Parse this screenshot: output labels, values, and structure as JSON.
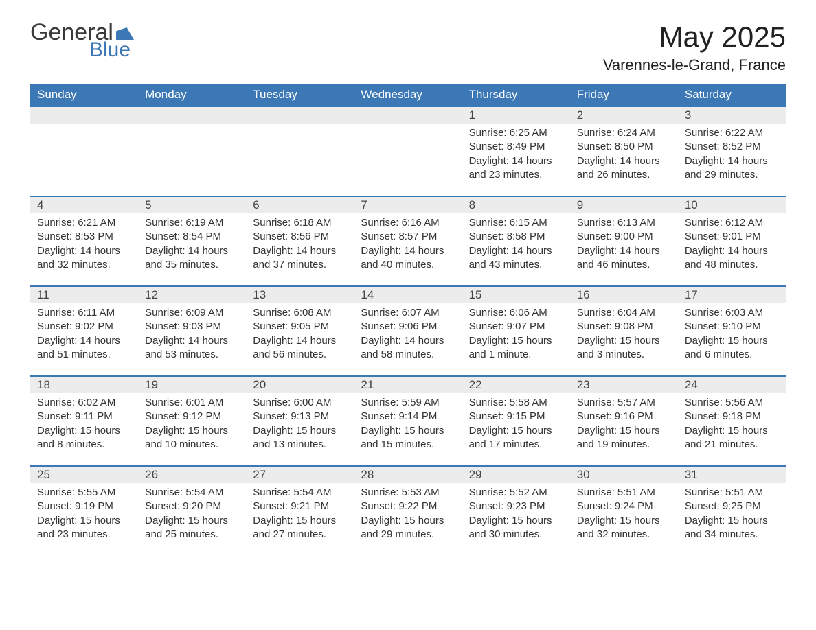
{
  "logo": {
    "word1": "General",
    "word2": "Blue"
  },
  "title": "May 2025",
  "location": "Varennes-le-Grand, France",
  "colors": {
    "header_bg": "#3b78b5",
    "header_text": "#ffffff",
    "daynum_bg": "#ececec",
    "border_top": "#3b78b5",
    "body_text": "#333333",
    "page_bg": "#ffffff"
  },
  "typography": {
    "title_fontsize": 42,
    "location_fontsize": 22,
    "header_fontsize": 17,
    "daynum_fontsize": 17,
    "cell_fontsize": 15,
    "font_family": "Arial"
  },
  "weekdays": [
    "Sunday",
    "Monday",
    "Tuesday",
    "Wednesday",
    "Thursday",
    "Friday",
    "Saturday"
  ],
  "weeks": [
    [
      null,
      null,
      null,
      null,
      {
        "n": "1",
        "sunrise": "6:25 AM",
        "sunset": "8:49 PM",
        "daylight": "14 hours and 23 minutes."
      },
      {
        "n": "2",
        "sunrise": "6:24 AM",
        "sunset": "8:50 PM",
        "daylight": "14 hours and 26 minutes."
      },
      {
        "n": "3",
        "sunrise": "6:22 AM",
        "sunset": "8:52 PM",
        "daylight": "14 hours and 29 minutes."
      }
    ],
    [
      {
        "n": "4",
        "sunrise": "6:21 AM",
        "sunset": "8:53 PM",
        "daylight": "14 hours and 32 minutes."
      },
      {
        "n": "5",
        "sunrise": "6:19 AM",
        "sunset": "8:54 PM",
        "daylight": "14 hours and 35 minutes."
      },
      {
        "n": "6",
        "sunrise": "6:18 AM",
        "sunset": "8:56 PM",
        "daylight": "14 hours and 37 minutes."
      },
      {
        "n": "7",
        "sunrise": "6:16 AM",
        "sunset": "8:57 PM",
        "daylight": "14 hours and 40 minutes."
      },
      {
        "n": "8",
        "sunrise": "6:15 AM",
        "sunset": "8:58 PM",
        "daylight": "14 hours and 43 minutes."
      },
      {
        "n": "9",
        "sunrise": "6:13 AM",
        "sunset": "9:00 PM",
        "daylight": "14 hours and 46 minutes."
      },
      {
        "n": "10",
        "sunrise": "6:12 AM",
        "sunset": "9:01 PM",
        "daylight": "14 hours and 48 minutes."
      }
    ],
    [
      {
        "n": "11",
        "sunrise": "6:11 AM",
        "sunset": "9:02 PM",
        "daylight": "14 hours and 51 minutes."
      },
      {
        "n": "12",
        "sunrise": "6:09 AM",
        "sunset": "9:03 PM",
        "daylight": "14 hours and 53 minutes."
      },
      {
        "n": "13",
        "sunrise": "6:08 AM",
        "sunset": "9:05 PM",
        "daylight": "14 hours and 56 minutes."
      },
      {
        "n": "14",
        "sunrise": "6:07 AM",
        "sunset": "9:06 PM",
        "daylight": "14 hours and 58 minutes."
      },
      {
        "n": "15",
        "sunrise": "6:06 AM",
        "sunset": "9:07 PM",
        "daylight": "15 hours and 1 minute."
      },
      {
        "n": "16",
        "sunrise": "6:04 AM",
        "sunset": "9:08 PM",
        "daylight": "15 hours and 3 minutes."
      },
      {
        "n": "17",
        "sunrise": "6:03 AM",
        "sunset": "9:10 PM",
        "daylight": "15 hours and 6 minutes."
      }
    ],
    [
      {
        "n": "18",
        "sunrise": "6:02 AM",
        "sunset": "9:11 PM",
        "daylight": "15 hours and 8 minutes."
      },
      {
        "n": "19",
        "sunrise": "6:01 AM",
        "sunset": "9:12 PM",
        "daylight": "15 hours and 10 minutes."
      },
      {
        "n": "20",
        "sunrise": "6:00 AM",
        "sunset": "9:13 PM",
        "daylight": "15 hours and 13 minutes."
      },
      {
        "n": "21",
        "sunrise": "5:59 AM",
        "sunset": "9:14 PM",
        "daylight": "15 hours and 15 minutes."
      },
      {
        "n": "22",
        "sunrise": "5:58 AM",
        "sunset": "9:15 PM",
        "daylight": "15 hours and 17 minutes."
      },
      {
        "n": "23",
        "sunrise": "5:57 AM",
        "sunset": "9:16 PM",
        "daylight": "15 hours and 19 minutes."
      },
      {
        "n": "24",
        "sunrise": "5:56 AM",
        "sunset": "9:18 PM",
        "daylight": "15 hours and 21 minutes."
      }
    ],
    [
      {
        "n": "25",
        "sunrise": "5:55 AM",
        "sunset": "9:19 PM",
        "daylight": "15 hours and 23 minutes."
      },
      {
        "n": "26",
        "sunrise": "5:54 AM",
        "sunset": "9:20 PM",
        "daylight": "15 hours and 25 minutes."
      },
      {
        "n": "27",
        "sunrise": "5:54 AM",
        "sunset": "9:21 PM",
        "daylight": "15 hours and 27 minutes."
      },
      {
        "n": "28",
        "sunrise": "5:53 AM",
        "sunset": "9:22 PM",
        "daylight": "15 hours and 29 minutes."
      },
      {
        "n": "29",
        "sunrise": "5:52 AM",
        "sunset": "9:23 PM",
        "daylight": "15 hours and 30 minutes."
      },
      {
        "n": "30",
        "sunrise": "5:51 AM",
        "sunset": "9:24 PM",
        "daylight": "15 hours and 32 minutes."
      },
      {
        "n": "31",
        "sunrise": "5:51 AM",
        "sunset": "9:25 PM",
        "daylight": "15 hours and 34 minutes."
      }
    ]
  ],
  "labels": {
    "sunrise": "Sunrise: ",
    "sunset": "Sunset: ",
    "daylight": "Daylight: "
  }
}
